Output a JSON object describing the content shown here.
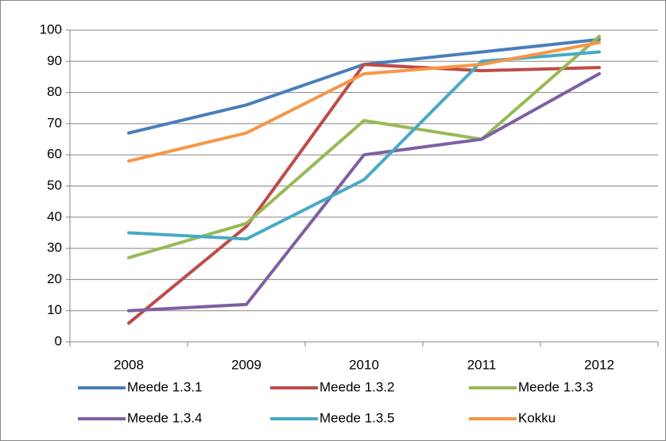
{
  "chart_data": {
    "type": "line",
    "categories": [
      "2008",
      "2009",
      "2010",
      "2011",
      "2012"
    ],
    "series": [
      {
        "name": "Meede 1.3.1",
        "color": "#4a7ebb",
        "values": [
          67,
          76,
          89,
          93,
          97
        ]
      },
      {
        "name": "Meede 1.3.2",
        "color": "#be4b48",
        "values": [
          6,
          37,
          89,
          87,
          88
        ]
      },
      {
        "name": "Meede 1.3.3",
        "color": "#98b954",
        "values": [
          27,
          38,
          71,
          65,
          98
        ]
      },
      {
        "name": "Meede 1.3.4",
        "color": "#7d60a0",
        "values": [
          10,
          12,
          60,
          65,
          86
        ]
      },
      {
        "name": "Meede 1.3.5",
        "color": "#46aac5",
        "values": [
          35,
          33,
          52,
          90,
          93
        ]
      },
      {
        "name": "Kokku",
        "color": "#f79646",
        "values": [
          58,
          67,
          86,
          89,
          96
        ]
      }
    ],
    "ylim": [
      0,
      100
    ],
    "yticks": [
      0,
      10,
      20,
      30,
      40,
      50,
      60,
      70,
      80,
      90,
      100
    ],
    "grid": true,
    "legend": "bottom"
  }
}
